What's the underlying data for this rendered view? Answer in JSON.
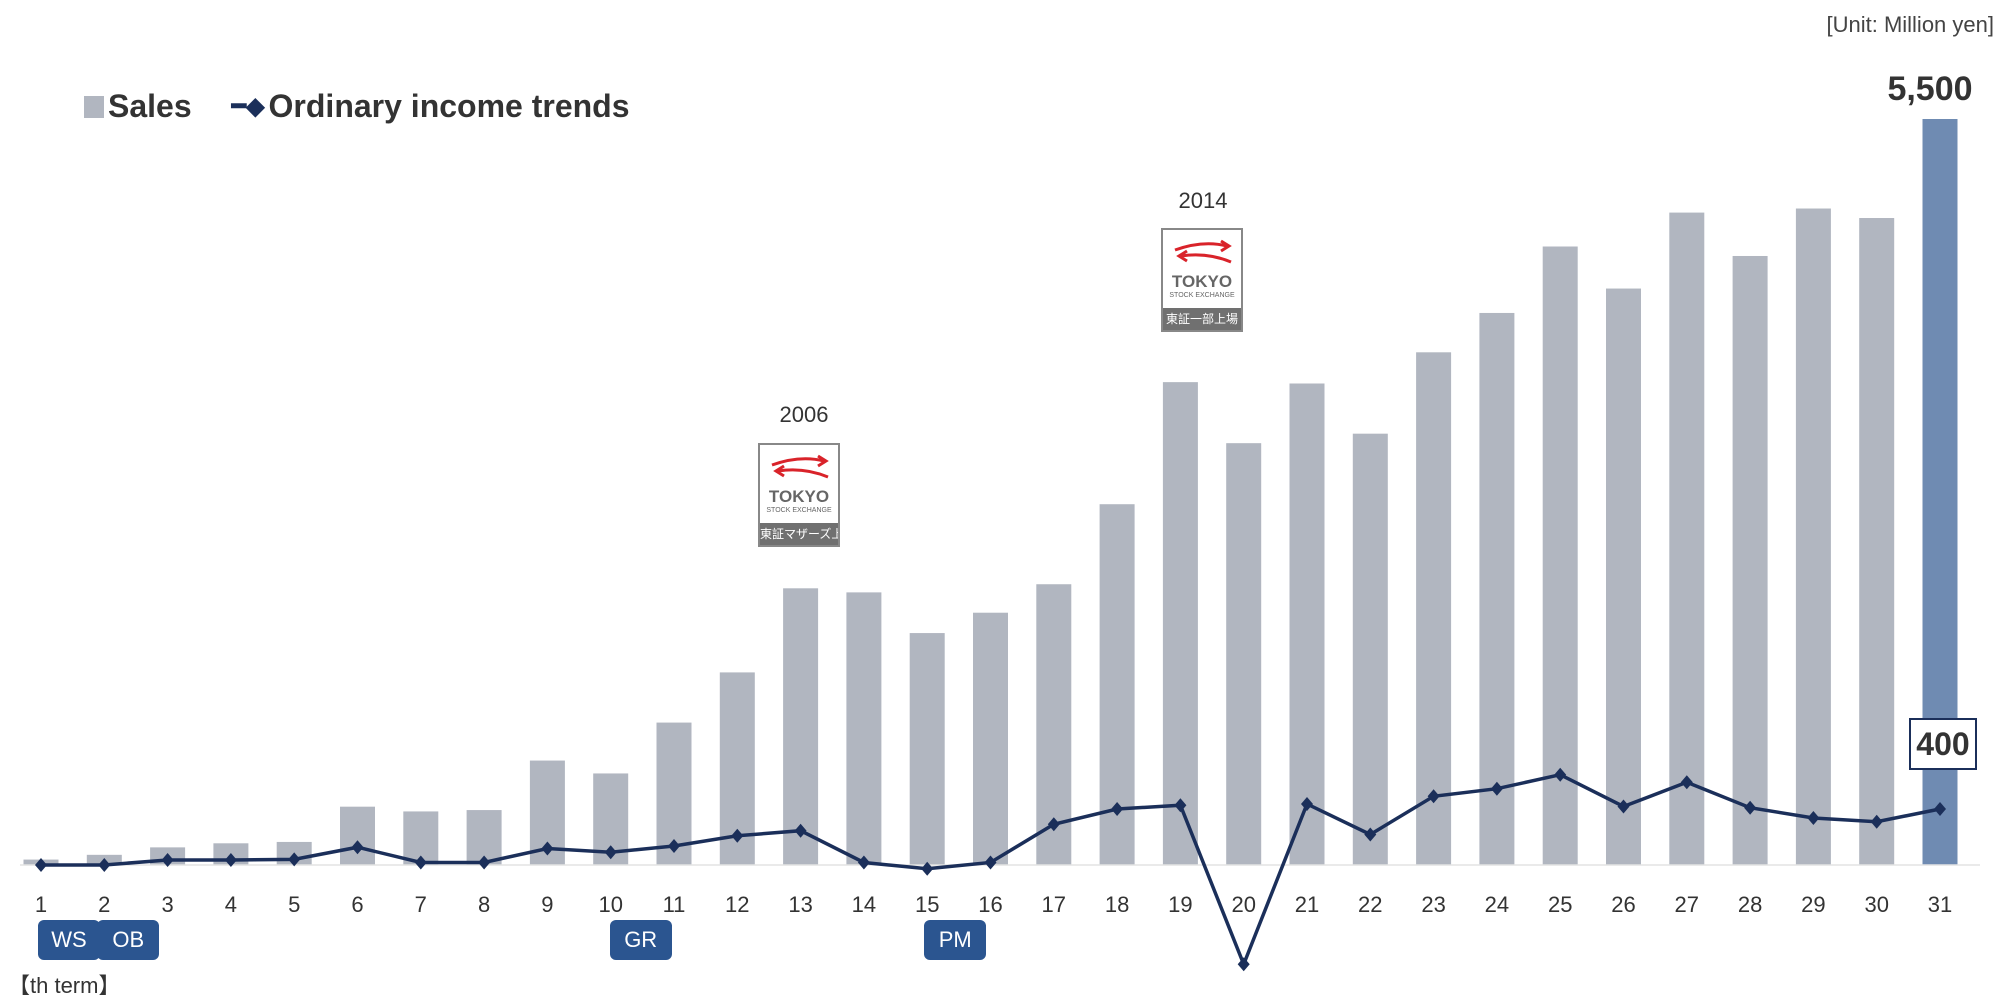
{
  "unit_label": "[Unit: Million yen]",
  "term_label": "【th term】",
  "colors": {
    "sales": "#b1b6c0",
    "sales_highlight": "#6f8bb2",
    "income": "#1b2f5a",
    "badge": "#2b5590"
  },
  "badges": [
    {
      "label": "WS",
      "term": 1
    },
    {
      "label": "OB",
      "term": 2
    },
    {
      "label": "GR",
      "term": 10
    },
    {
      "label": "PM",
      "term": 15
    }
  ],
  "annotations": [
    {
      "year": "2006",
      "term": 13,
      "logo_text": "TOKYO",
      "logo_sub": "STOCK EXCHANGE",
      "logo_jp": "東証マザーズ上場"
    },
    {
      "year": "2014",
      "term": 19,
      "logo_text": "TOKYO",
      "logo_sub": "STOCK EXCHANGE",
      "logo_jp": "東証一部上場"
    }
  ],
  "chart_data": {
    "type": "bar",
    "title": "",
    "xlabel": "【th term】",
    "ylabel": "Million yen",
    "legend": [
      "Sales",
      "Ordinary income trends"
    ],
    "legend_position": "top-left",
    "categories": [
      "1",
      "2",
      "3",
      "4",
      "5",
      "6",
      "7",
      "8",
      "9",
      "10",
      "11",
      "12",
      "13",
      "14",
      "15",
      "16",
      "17",
      "18",
      "19",
      "20",
      "21",
      "22",
      "23",
      "24",
      "25",
      "26",
      "27",
      "28",
      "29",
      "30",
      "31"
    ],
    "series": [
      {
        "name": "Sales",
        "type": "bar",
        "values": [
          40,
          75,
          130,
          160,
          170,
          430,
          395,
          405,
          770,
          675,
          1050,
          1420,
          2040,
          2010,
          1710,
          1860,
          2070,
          2660,
          3560,
          3110,
          3550,
          3180,
          3780,
          4070,
          4560,
          4250,
          4810,
          4490,
          4840,
          4770,
          5500
        ]
      },
      {
        "name": "Ordinary income trends",
        "type": "line",
        "values": [
          0,
          0,
          36,
          36,
          40,
          127,
          18,
          18,
          118,
          91,
          136,
          209,
          245,
          18,
          -27,
          18,
          291,
          400,
          427,
          -709,
          436,
          218,
          491,
          545,
          645,
          418,
          591,
          409,
          336,
          309,
          400
        ]
      }
    ],
    "data_labels": {
      "sales_last": "5,500",
      "income_last": "400"
    },
    "grid": false
  }
}
